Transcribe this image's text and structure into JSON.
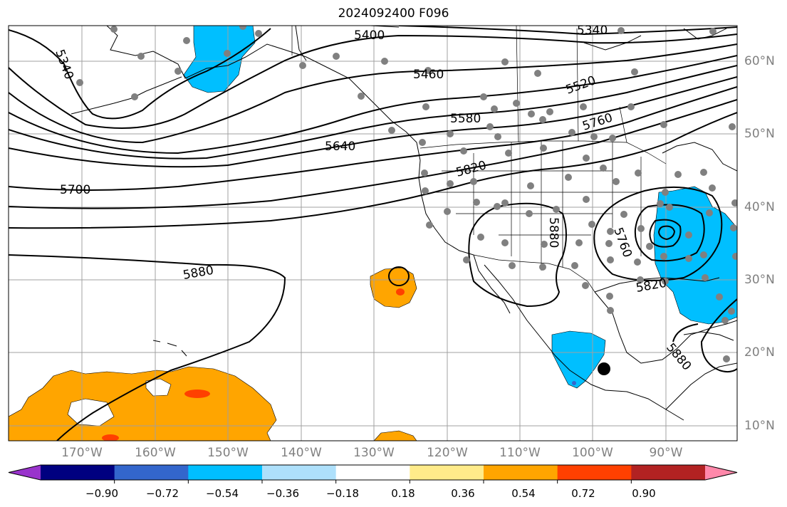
{
  "title": "2024092400 F096",
  "latitude_labels": [
    "60°N",
    "50°N",
    "40°N",
    "30°N",
    "20°N",
    "10°N"
  ],
  "longitude_labels": [
    "170°W",
    "160°W",
    "150°W",
    "140°W",
    "130°W",
    "120°W",
    "110°W",
    "100°W",
    "90°W"
  ],
  "contour_labels": [
    "5340",
    "5340",
    "5400",
    "5460",
    "5520",
    "5580",
    "5640",
    "5700",
    "5760",
    "5760",
    "5820",
    "5820",
    "5880",
    "5880",
    "5880"
  ],
  "colorbar": {
    "ticks": [
      "−0.90",
      "−0.72",
      "−0.54",
      "−0.36",
      "−0.18",
      "0.18",
      "0.36",
      "0.54",
      "0.72",
      "0.90"
    ],
    "colors": [
      "#9933cc",
      "#000080",
      "#3366cc",
      "#00bfff",
      "#aee0fb",
      "#ffffff",
      "#ffeb8a",
      "#ffa500",
      "#ff4000",
      "#b22222",
      "#ff88aa"
    ]
  },
  "colors": {
    "negative_fill": "#00bfff",
    "positive_fill": "#ffa500",
    "strong_positive_fill": "#ff4000",
    "station_marker": "#808080",
    "highlight_marker": "#000000"
  }
}
